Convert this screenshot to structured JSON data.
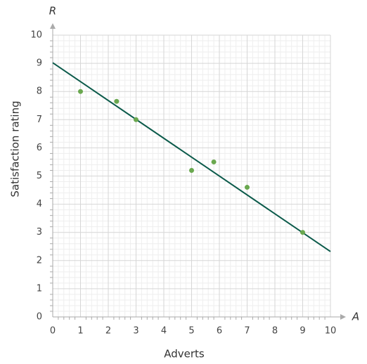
{
  "chart_data": {
    "type": "scatter",
    "x_label": "Adverts",
    "y_label": "Satisfaction rating",
    "x_symbol": "A",
    "y_symbol": "R",
    "x": [
      1,
      2.3,
      3,
      5,
      5.8,
      7,
      9
    ],
    "values": [
      8,
      7.65,
      7,
      5.2,
      5.5,
      4.6,
      3
    ],
    "color": "#6aa84f",
    "trend_line": {
      "x": [
        0,
        10
      ],
      "values": [
        9.02,
        2.32
      ],
      "color": "#0b5a4a"
    },
    "xlim": [
      0,
      10
    ],
    "ylim": [
      0,
      10
    ],
    "xticks": [
      0,
      1,
      2,
      3,
      4,
      5,
      6,
      7,
      8,
      9,
      10
    ],
    "yticks": [
      0,
      1,
      2,
      3,
      4,
      5,
      6,
      7,
      8,
      9,
      10
    ],
    "grid": true
  }
}
